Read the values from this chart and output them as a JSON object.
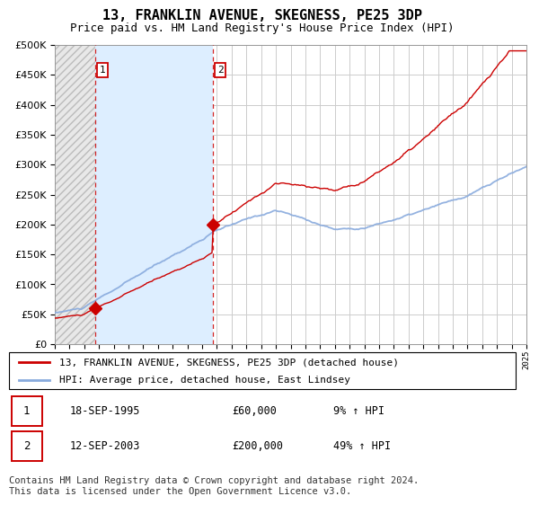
{
  "title": "13, FRANKLIN AVENUE, SKEGNESS, PE25 3DP",
  "subtitle": "Price paid vs. HM Land Registry's House Price Index (HPI)",
  "legend_line1": "13, FRANKLIN AVENUE, SKEGNESS, PE25 3DP (detached house)",
  "legend_line2": "HPI: Average price, detached house, East Lindsey",
  "footer": "Contains HM Land Registry data © Crown copyright and database right 2024.\nThis data is licensed under the Open Government Licence v3.0.",
  "sale1_date": "18-SEP-1995",
  "sale1_price": "£60,000",
  "sale1_hpi": "9% ↑ HPI",
  "sale1_year": 1995.72,
  "sale1_value": 60000,
  "sale2_date": "12-SEP-2003",
  "sale2_price": "£200,000",
  "sale2_hpi": "49% ↑ HPI",
  "sale2_year": 2003.72,
  "sale2_value": 200000,
  "xmin": 1993,
  "xmax": 2025,
  "ymin": 0,
  "ymax": 500000,
  "hpi_color": "#88aadd",
  "price_color": "#cc0000",
  "chart_bg": "#ffffff",
  "hatch_bg": "#e8e8e8",
  "between_bg": "#ddeeff",
  "grid_color": "#cccccc",
  "title_fontsize": 11,
  "subtitle_fontsize": 9,
  "legend_fontsize": 8,
  "table_fontsize": 8.5,
  "footer_fontsize": 7.5
}
